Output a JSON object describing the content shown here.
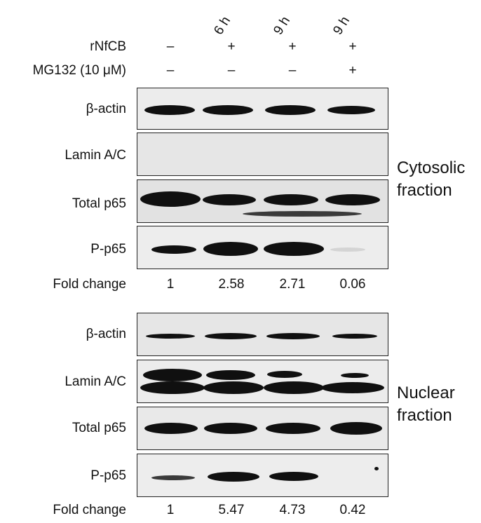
{
  "header": {
    "timepoints": [
      "6 h",
      "9 h",
      "9 h"
    ],
    "treatments": [
      {
        "label": "rNfCB",
        "values": [
          "–",
          "+",
          "+",
          "+"
        ]
      },
      {
        "label": "MG132 (10 μM)",
        "values": [
          "–",
          "–",
          "–",
          "+"
        ]
      }
    ]
  },
  "cytosolic": {
    "title_line1": "Cytosolic",
    "title_line2": "fraction",
    "rows": [
      "β-actin",
      "Lamin A/C",
      "Total p65",
      "P-p65"
    ],
    "fold_label": "Fold change",
    "fold_values": [
      "1",
      "2.58",
      "2.71",
      "0.06"
    ]
  },
  "nuclear": {
    "title_line1": "Nuclear",
    "title_line2": "fraction",
    "rows": [
      "β-actin",
      "Lamin A/C",
      "Total p65",
      "P-p65"
    ],
    "fold_label": "Fold change",
    "fold_values": [
      "1",
      "5.47",
      "4.73",
      "0.42"
    ]
  }
}
